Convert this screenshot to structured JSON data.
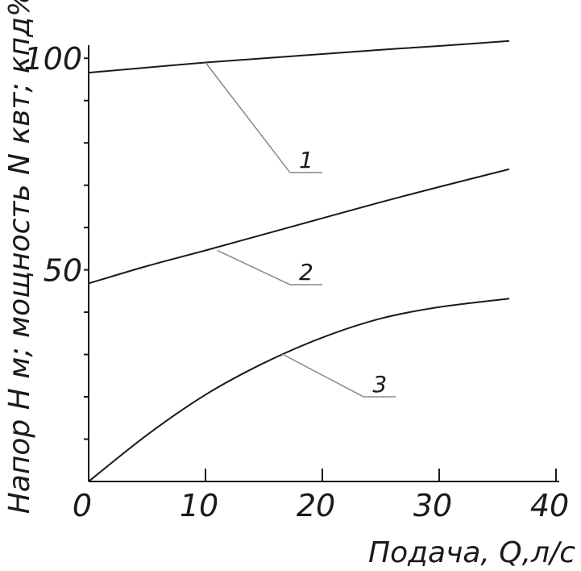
{
  "chart_data": {
    "type": "line",
    "xlabel": "Подача, Q,л/с",
    "ylabel": "Напор Н м; мощность N квт; кпд%",
    "xlim": [
      0,
      40
    ],
    "ylim": [
      0,
      105
    ],
    "x_ticks": [
      {
        "value": 0,
        "label": "0"
      },
      {
        "value": 10,
        "label": "10"
      },
      {
        "value": 20,
        "label": "20"
      },
      {
        "value": 30,
        "label": "30"
      },
      {
        "value": 40,
        "label": "40"
      }
    ],
    "y_ticks_minor": [
      10,
      20,
      30,
      40,
      50,
      60,
      70,
      80,
      90,
      100
    ],
    "y_tick_labels": [
      {
        "value": 50,
        "label": "50"
      },
      {
        "value": 100,
        "label": "100"
      }
    ],
    "grid": false,
    "series": [
      {
        "name": "1",
        "x": [
          0,
          5,
          10,
          15,
          20,
          25,
          30,
          36
        ],
        "values": [
          96.6,
          97.8,
          99.0,
          100.0,
          101.0,
          102.0,
          102.9,
          104.1
        ],
        "label_anchor": [
          10,
          99.0
        ],
        "label_pos": [
          18.2,
          73
        ]
      },
      {
        "name": "2",
        "x": [
          0,
          5,
          10,
          15,
          20,
          25,
          30,
          36
        ],
        "values": [
          46.8,
          50.9,
          54.6,
          58.4,
          62.2,
          66.0,
          69.6,
          73.8
        ],
        "label_anchor": [
          11,
          54.6
        ],
        "label_pos": [
          18.2,
          46.5
        ]
      },
      {
        "name": "3",
        "x": [
          0,
          5,
          10,
          15,
          20,
          25,
          30,
          36
        ],
        "values": [
          0,
          11,
          20.5,
          28.0,
          34.0,
          38.5,
          41.2,
          43.2
        ],
        "label_anchor": [
          16.5,
          30.2
        ],
        "label_pos": [
          24.5,
          20
        ]
      }
    ]
  }
}
